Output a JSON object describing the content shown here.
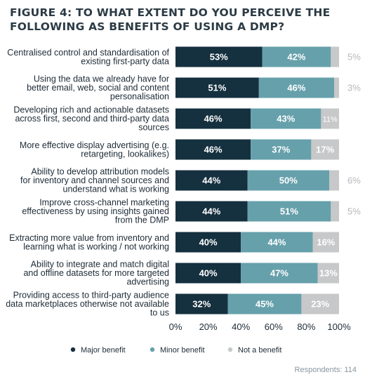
{
  "chart_data": {
    "type": "bar",
    "orientation": "horizontal",
    "stacked": true,
    "title": "FIGURE 4: TO WHAT EXTENT DO YOU PERCEIVE THE FOLLOWING AS BENEFITS OF USING A DMP?",
    "categories": [
      [
        "Centralised control and standardisation of",
        "existing first-party data"
      ],
      [
        "Using the data we already have for",
        "better email, web, social and content",
        "personalisation"
      ],
      [
        "Developing rich and actionable datasets",
        "across first, second and third-party data",
        "sources"
      ],
      [
        "More effective display advertising (e.g.",
        "retargeting, lookalikes)"
      ],
      [
        "Ability to develop attribution models",
        "for inventory and channel sources and",
        "understand what is working"
      ],
      [
        "Improve cross-channel marketing",
        "effectiveness by using insights gained",
        "from the DMP"
      ],
      [
        "Extracting more value from inventory and",
        "learning what is working / not working"
      ],
      [
        "Ability to integrate and match digital",
        "and offline datasets for more targeted",
        "advertising"
      ],
      [
        "Providing access to third-party audience",
        "data marketplaces otherwise not available",
        "to us"
      ]
    ],
    "series": [
      {
        "name": "Major benefit",
        "color": "#15303f",
        "values": [
          53,
          51,
          46,
          46,
          44,
          44,
          40,
          40,
          32
        ]
      },
      {
        "name": "Minor benefit",
        "color": "#66a0ab",
        "values": [
          42,
          46,
          43,
          37,
          50,
          51,
          44,
          47,
          45
        ]
      },
      {
        "name": "Not a benefit",
        "color": "#c7c8c9",
        "values": [
          5,
          3,
          11,
          17,
          6,
          5,
          16,
          13,
          23
        ]
      }
    ],
    "xlim": [
      0,
      100
    ],
    "x_ticks": [
      "0%",
      "20%",
      "40%",
      "60%",
      "80%",
      "100%"
    ],
    "grid": false,
    "legend_position": "bottom",
    "footnote": "Respondents: 114"
  }
}
